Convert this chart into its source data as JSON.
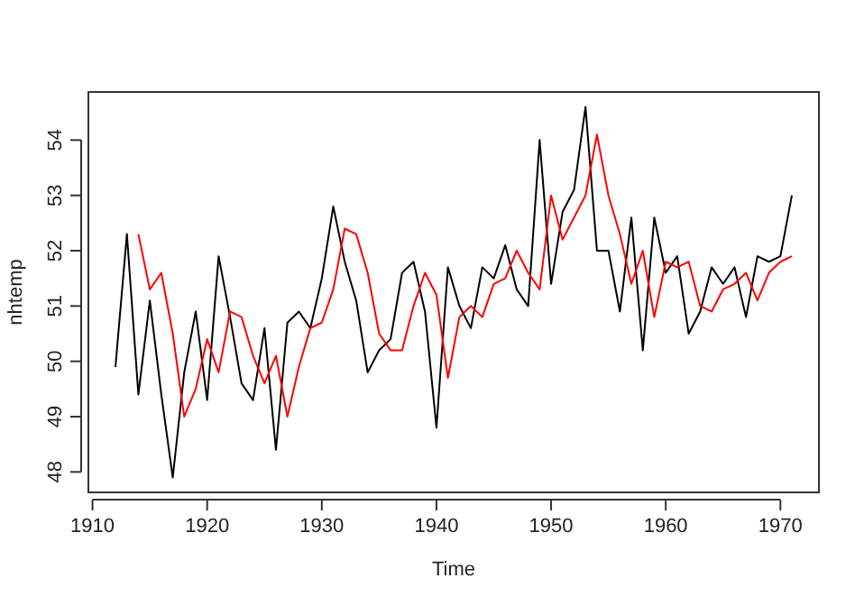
{
  "chart_data": {
    "type": "line",
    "xlabel": "Time",
    "ylabel": "nhtemp",
    "xlim": [
      1909.64,
      1973.36
    ],
    "ylim": [
      47.63,
      54.87
    ],
    "xticks": [
      1910,
      1920,
      1930,
      1940,
      1950,
      1960,
      1970
    ],
    "yticks": [
      48,
      49,
      50,
      51,
      52,
      53,
      54
    ],
    "grid": false,
    "marker": "none",
    "line_style": "solid",
    "series": [
      {
        "color": "#000000",
        "x": [
          1912,
          1913,
          1914,
          1915,
          1916,
          1917,
          1918,
          1919,
          1920,
          1921,
          1922,
          1923,
          1924,
          1925,
          1926,
          1927,
          1928,
          1929,
          1930,
          1931,
          1932,
          1933,
          1934,
          1935,
          1936,
          1937,
          1938,
          1939,
          1940,
          1941,
          1942,
          1943,
          1944,
          1945,
          1946,
          1947,
          1948,
          1949,
          1950,
          1951,
          1952,
          1953,
          1954,
          1955,
          1956,
          1957,
          1958,
          1959,
          1960,
          1961,
          1962,
          1963,
          1964,
          1965,
          1966,
          1967,
          1968,
          1969,
          1970,
          1971
        ],
        "values": [
          49.9,
          52.3,
          49.4,
          51.1,
          49.4,
          47.9,
          49.8,
          50.9,
          49.3,
          51.9,
          50.8,
          49.6,
          49.3,
          50.6,
          48.4,
          50.7,
          50.9,
          50.6,
          51.5,
          52.8,
          51.8,
          51.1,
          49.8,
          50.2,
          50.4,
          51.6,
          51.8,
          50.9,
          48.8,
          51.7,
          51.0,
          50.6,
          51.7,
          51.5,
          52.1,
          51.3,
          51.0,
          54.0,
          51.4,
          52.7,
          53.1,
          54.6,
          52.0,
          52.0,
          50.9,
          52.6,
          50.2,
          52.6,
          51.6,
          51.9,
          50.5,
          50.9,
          51.7,
          51.4,
          51.7,
          50.8,
          51.9,
          51.8,
          51.9,
          53.0
        ]
      },
      {
        "color": "#ff0000",
        "x": [
          1914,
          1915,
          1916,
          1917,
          1918,
          1919,
          1920,
          1921,
          1922,
          1923,
          1924,
          1925,
          1926,
          1927,
          1928,
          1929,
          1930,
          1931,
          1932,
          1933,
          1934,
          1935,
          1936,
          1937,
          1938,
          1939,
          1940,
          1941,
          1942,
          1943,
          1944,
          1945,
          1946,
          1947,
          1948,
          1949,
          1950,
          1951,
          1952,
          1953,
          1954,
          1955,
          1956,
          1957,
          1958,
          1959,
          1960,
          1961,
          1962,
          1963,
          1964,
          1965,
          1966,
          1967,
          1968,
          1969,
          1970,
          1971
        ],
        "values": [
          52.3,
          51.3,
          51.6,
          50.5,
          49.0,
          49.5,
          50.4,
          49.8,
          50.9,
          50.8,
          50.1,
          49.6,
          50.1,
          49.0,
          49.9,
          50.6,
          50.7,
          51.3,
          52.4,
          52.3,
          51.6,
          50.5,
          50.2,
          50.2,
          51.0,
          51.6,
          51.2,
          49.7,
          50.8,
          51.0,
          50.8,
          51.4,
          51.5,
          52.0,
          51.6,
          51.3,
          53.0,
          52.2,
          52.6,
          53.0,
          54.1,
          53.0,
          52.3,
          51.4,
          52.0,
          50.8,
          51.8,
          51.7,
          51.8,
          51.0,
          50.9,
          51.3,
          51.4,
          51.6,
          51.1,
          51.6,
          51.8,
          51.9
        ]
      }
    ]
  }
}
